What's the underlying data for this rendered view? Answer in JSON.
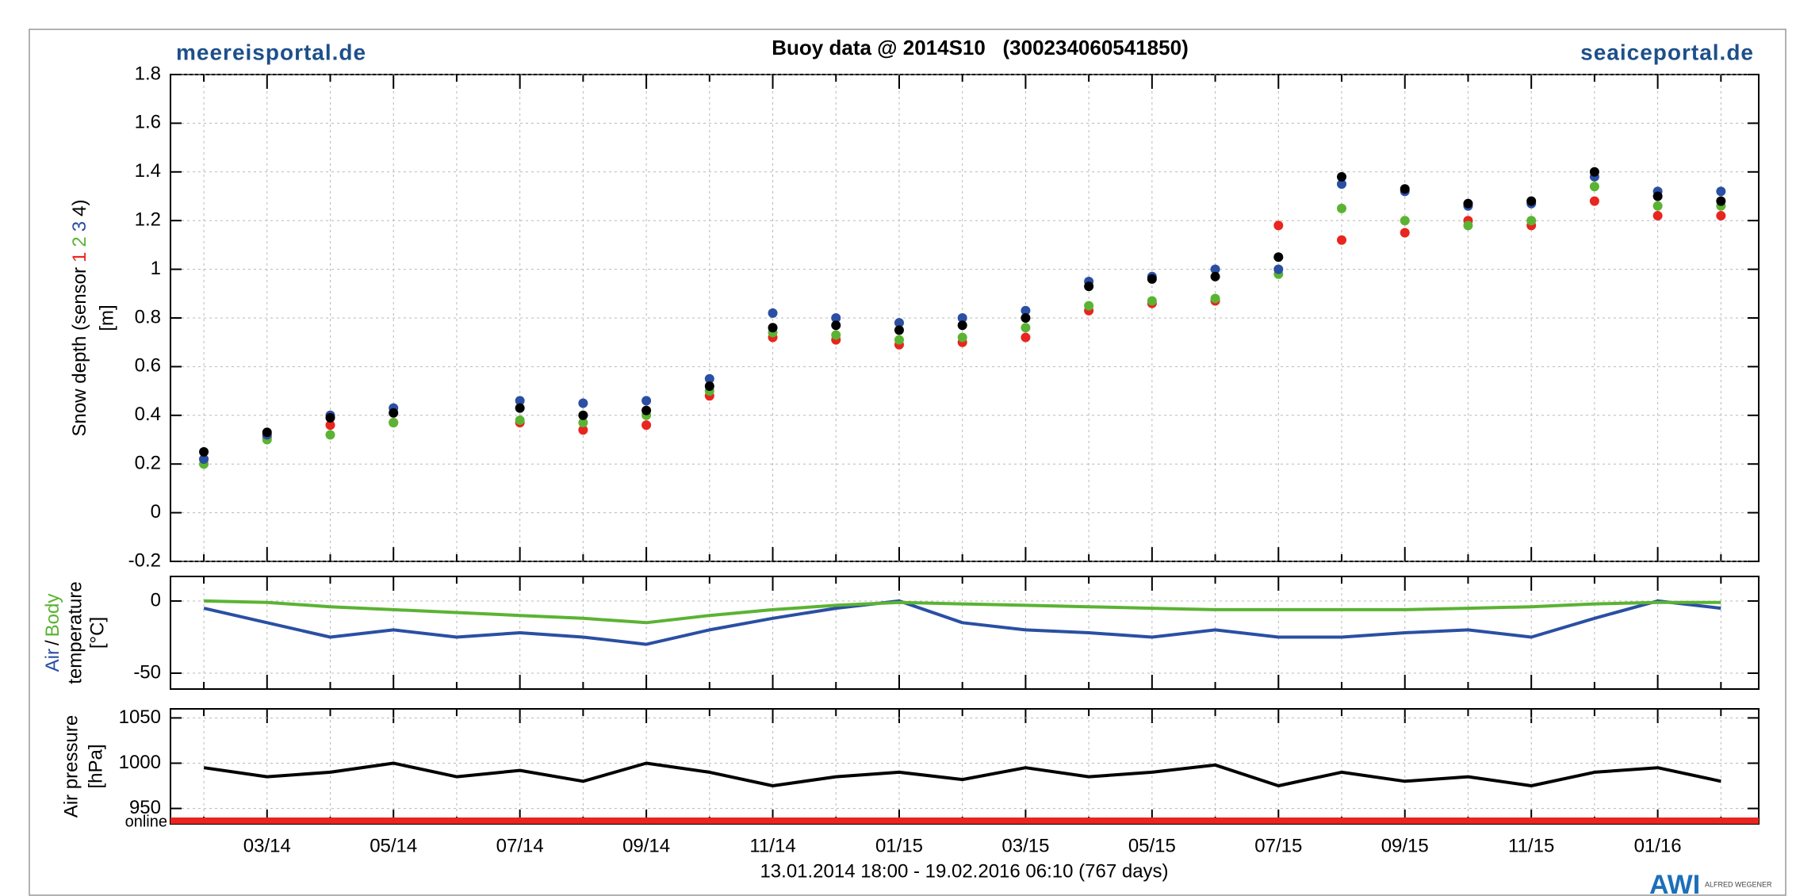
{
  "header": {
    "left": "meereisportal.de",
    "title": "Buoy data @ 2014S10   (300234060541850)",
    "right": "seaiceportal.de"
  },
  "x_axis": {
    "categories": [
      null,
      "03/14",
      null,
      "05/14",
      null,
      "07/14",
      null,
      "09/14",
      null,
      "11/14",
      null,
      "01/15",
      null,
      "03/15",
      null,
      "05/15",
      null,
      "07/15",
      null,
      "09/15",
      null,
      "11/15",
      null,
      "01/16",
      null
    ],
    "caption": "13.01.2014 18:00 - 19.02.2016 06:10 (767 days)"
  },
  "logo": {
    "mark": "AWI",
    "text": "ALFRED WEGENER"
  },
  "chart_data": [
    {
      "type": "scatter",
      "y_label": "Snow depth (sensor",
      "y_label_close": ")",
      "y_unit": "[m]",
      "ylim": [
        -0.2,
        1.8
      ],
      "yticks": [
        -0.2,
        0,
        0.2,
        0.4,
        0.6,
        0.8,
        1,
        1.2,
        1.4,
        1.6,
        1.8
      ],
      "grid": true,
      "series": [
        {
          "name": "1",
          "color": "#e8251e",
          "values": [
            0.22,
            0.31,
            0.36,
            0.37,
            null,
            0.37,
            0.34,
            0.36,
            0.48,
            0.72,
            0.71,
            0.69,
            0.7,
            0.72,
            0.83,
            0.86,
            0.87,
            1.18,
            1.12,
            1.15,
            1.2,
            1.18,
            1.28,
            1.22,
            1.22
          ]
        },
        {
          "name": "2",
          "color": "#5bb333",
          "values": [
            0.2,
            0.3,
            0.32,
            0.37,
            null,
            0.38,
            0.37,
            0.4,
            0.5,
            0.74,
            0.73,
            0.71,
            0.72,
            0.76,
            0.85,
            0.87,
            0.88,
            0.98,
            1.25,
            1.2,
            1.18,
            1.2,
            1.34,
            1.26,
            1.26
          ]
        },
        {
          "name": "3",
          "color": "#2a4fa3",
          "values": [
            0.22,
            0.32,
            0.4,
            0.43,
            null,
            0.46,
            0.45,
            0.46,
            0.55,
            0.82,
            0.8,
            0.78,
            0.8,
            0.83,
            0.95,
            0.97,
            1.0,
            1.0,
            1.35,
            1.32,
            1.26,
            1.27,
            1.38,
            1.32,
            1.32
          ]
        },
        {
          "name": "4",
          "color": "#000000",
          "values": [
            0.25,
            0.33,
            0.39,
            0.41,
            null,
            0.43,
            0.4,
            0.42,
            0.52,
            0.76,
            0.77,
            0.75,
            0.77,
            0.8,
            0.93,
            0.96,
            0.97,
            1.05,
            1.38,
            1.33,
            1.27,
            1.28,
            1.4,
            1.3,
            1.28
          ]
        }
      ]
    },
    {
      "type": "line",
      "y_label_sep": "/",
      "y_label": "temperature",
      "y_unit": "[°C]",
      "ylim": [
        -61,
        17
      ],
      "yticks": [
        -50,
        0
      ],
      "grid": true,
      "series": [
        {
          "name": "Air",
          "color": "#2a4fa3",
          "values": [
            -5,
            -15,
            -25,
            -20,
            -25,
            -22,
            -25,
            -30,
            -20,
            -12,
            -5,
            0,
            -15,
            -20,
            -22,
            -25,
            -20,
            -25,
            -25,
            -22,
            -20,
            -25,
            -12,
            0,
            -5
          ]
        },
        {
          "name": "Body",
          "color": "#5bb333",
          "values": [
            0,
            -1,
            -4,
            -6,
            -8,
            -10,
            -12,
            -15,
            -10,
            -6,
            -3,
            -1,
            -2,
            -3,
            -4,
            -5,
            -6,
            -6,
            -6,
            -6,
            -5,
            -4,
            -2,
            -1,
            -1
          ]
        }
      ]
    },
    {
      "type": "line",
      "y_label": "Air pressure",
      "y_unit": "[hPa]",
      "status": "online",
      "status_color": "#e8251e",
      "ylim": [
        933,
        1060
      ],
      "yticks": [
        950,
        1000,
        1050
      ],
      "grid": true,
      "series": [
        {
          "name": null,
          "color": "#000000",
          "values": [
            995,
            985,
            990,
            1000,
            985,
            992,
            980,
            1000,
            990,
            975,
            985,
            990,
            982,
            995,
            985,
            990,
            998,
            975,
            990,
            980,
            985,
            975,
            990,
            995,
            980
          ]
        }
      ]
    }
  ]
}
